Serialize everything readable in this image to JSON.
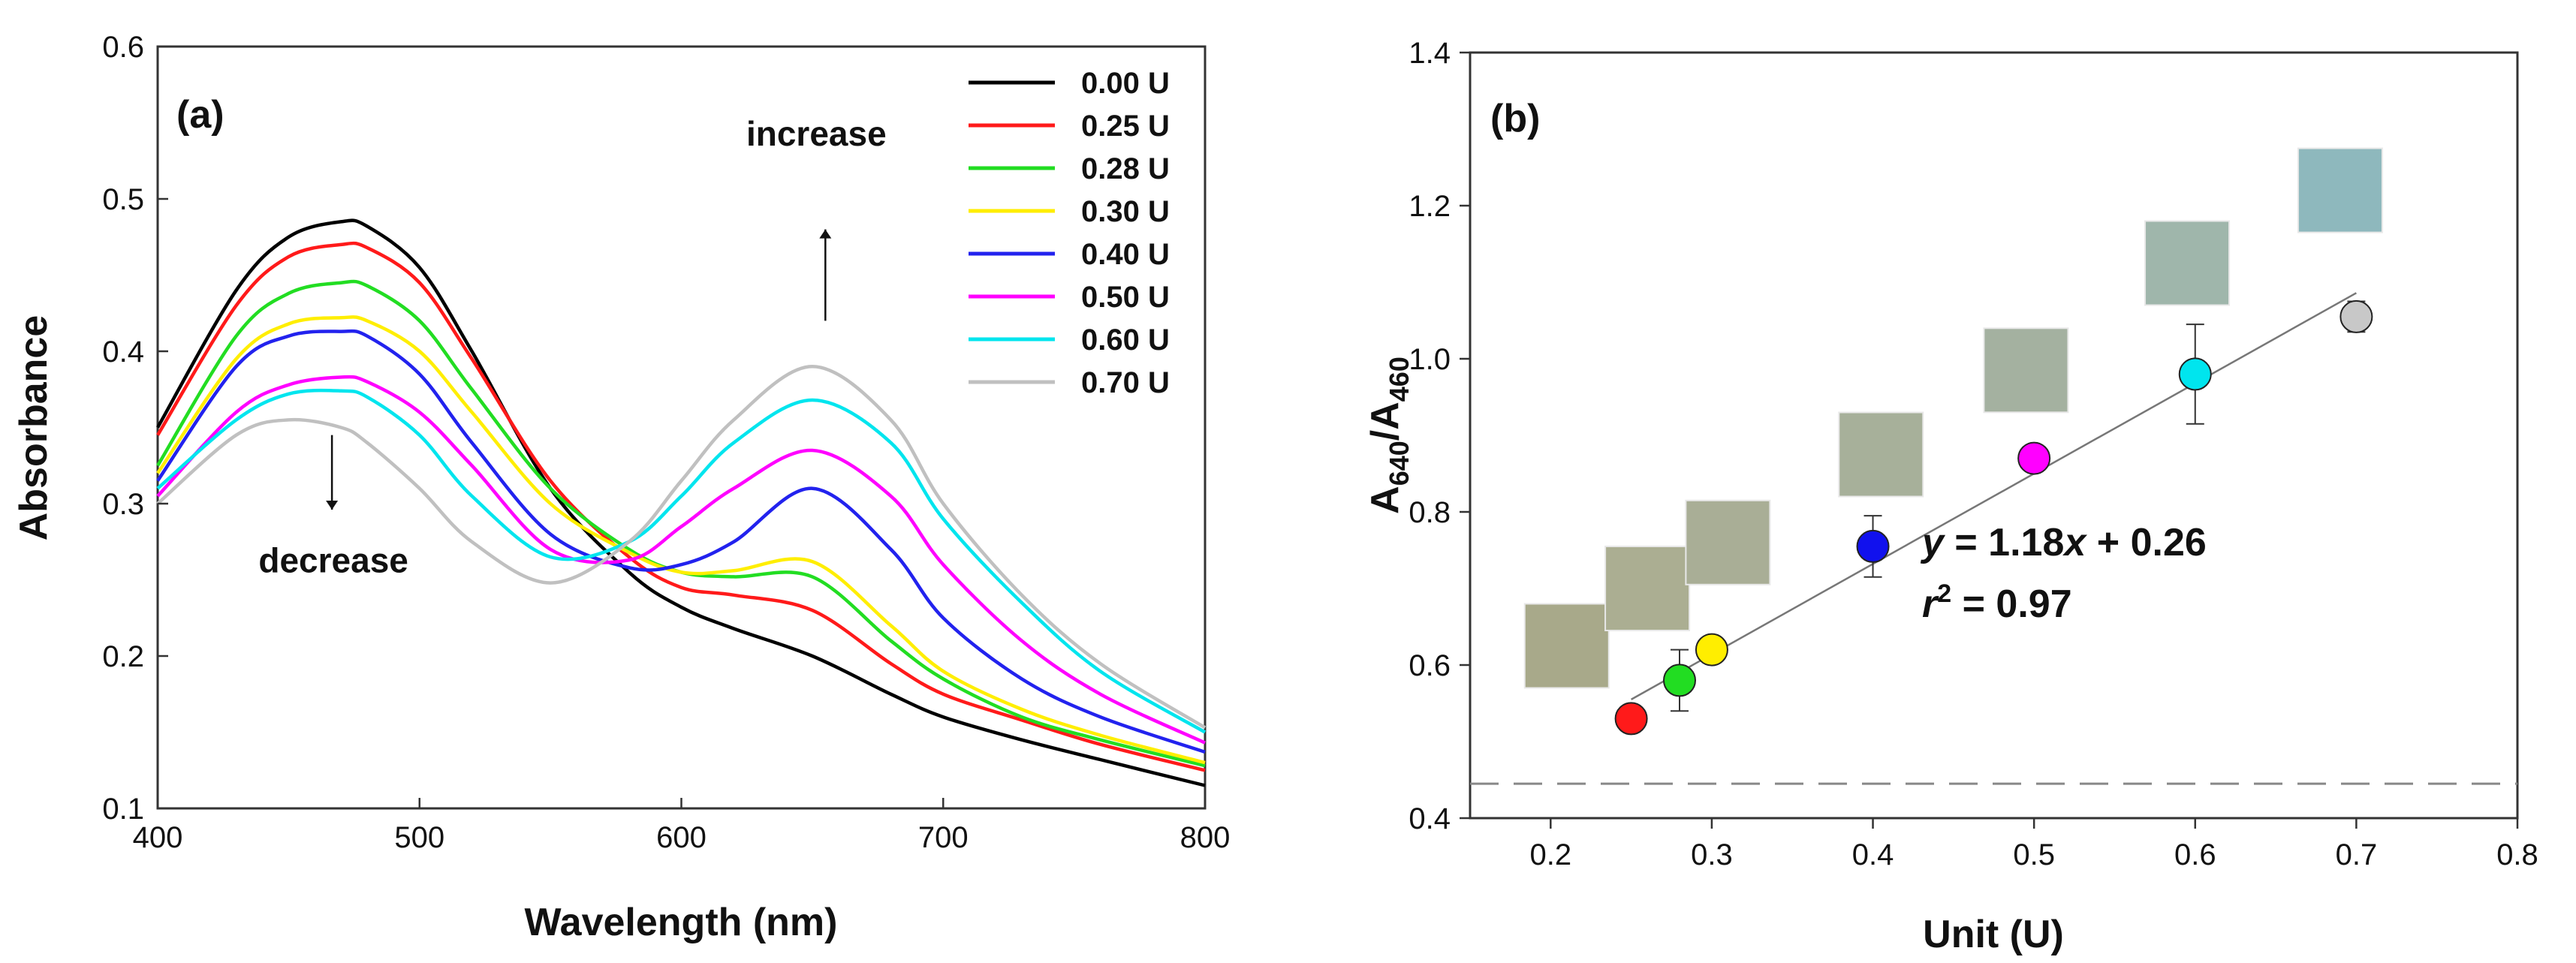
{
  "chart_data": [
    {
      "type": "line",
      "panel_label": "(a)",
      "xlabel": "Wavelength (nm)",
      "ylabel": "Absorbance",
      "xlim": [
        400,
        800
      ],
      "ylim": [
        0.1,
        0.6
      ],
      "xticks": [
        400,
        500,
        600,
        700,
        800
      ],
      "yticks": [
        0.1,
        0.2,
        0.3,
        0.4,
        0.5,
        0.6
      ],
      "legend_position": "top-right",
      "series": [
        {
          "name": "0.00 U",
          "color": "#000000",
          "x": [
            400,
            430,
            450,
            470,
            480,
            500,
            520,
            550,
            580,
            600,
            620,
            650,
            680,
            700,
            730,
            760,
            800
          ],
          "y": [
            0.35,
            0.44,
            0.475,
            0.485,
            0.482,
            0.455,
            0.4,
            0.31,
            0.255,
            0.232,
            0.218,
            0.2,
            0.175,
            0.16,
            0.145,
            0.132,
            0.115
          ]
        },
        {
          "name": "0.25 U",
          "color": "#ff1a1a",
          "x": [
            400,
            430,
            450,
            470,
            480,
            500,
            520,
            550,
            580,
            600,
            620,
            650,
            680,
            700,
            730,
            760,
            800
          ],
          "y": [
            0.345,
            0.43,
            0.462,
            0.47,
            0.468,
            0.445,
            0.395,
            0.315,
            0.265,
            0.245,
            0.24,
            0.23,
            0.195,
            0.175,
            0.158,
            0.142,
            0.125
          ]
        },
        {
          "name": "0.28 U",
          "color": "#22dd22",
          "x": [
            400,
            430,
            450,
            470,
            480,
            500,
            520,
            550,
            580,
            600,
            620,
            650,
            680,
            700,
            730,
            760,
            800
          ],
          "y": [
            0.325,
            0.41,
            0.438,
            0.445,
            0.443,
            0.42,
            0.375,
            0.31,
            0.27,
            0.255,
            0.252,
            0.252,
            0.21,
            0.185,
            0.16,
            0.145,
            0.128
          ]
        },
        {
          "name": "0.30 U",
          "color": "#ffee00",
          "x": [
            400,
            430,
            450,
            470,
            480,
            500,
            520,
            550,
            580,
            600,
            620,
            650,
            680,
            700,
            730,
            760,
            800
          ],
          "y": [
            0.32,
            0.395,
            0.418,
            0.422,
            0.42,
            0.4,
            0.36,
            0.3,
            0.268,
            0.255,
            0.256,
            0.262,
            0.22,
            0.19,
            0.165,
            0.148,
            0.13
          ]
        },
        {
          "name": "0.40 U",
          "color": "#2222ee",
          "x": [
            400,
            430,
            450,
            470,
            480,
            500,
            520,
            550,
            580,
            600,
            620,
            650,
            680,
            700,
            730,
            760,
            800
          ],
          "y": [
            0.315,
            0.39,
            0.41,
            0.413,
            0.41,
            0.385,
            0.34,
            0.28,
            0.258,
            0.26,
            0.275,
            0.31,
            0.27,
            0.225,
            0.185,
            0.16,
            0.137
          ]
        },
        {
          "name": "0.50 U",
          "color": "#ff00ff",
          "x": [
            400,
            430,
            450,
            470,
            480,
            500,
            520,
            550,
            580,
            600,
            620,
            650,
            680,
            700,
            730,
            760,
            800
          ],
          "y": [
            0.305,
            0.36,
            0.378,
            0.383,
            0.38,
            0.36,
            0.325,
            0.27,
            0.263,
            0.285,
            0.31,
            0.335,
            0.305,
            0.26,
            0.21,
            0.175,
            0.143
          ]
        },
        {
          "name": "0.60 U",
          "color": "#00e5ee",
          "x": [
            400,
            430,
            450,
            470,
            480,
            500,
            520,
            550,
            580,
            600,
            620,
            650,
            680,
            700,
            730,
            760,
            800
          ],
          "y": [
            0.31,
            0.355,
            0.372,
            0.374,
            0.37,
            0.345,
            0.305,
            0.265,
            0.275,
            0.305,
            0.34,
            0.368,
            0.34,
            0.29,
            0.235,
            0.19,
            0.15
          ]
        },
        {
          "name": "0.70 U",
          "color": "#c0c0c0",
          "x": [
            400,
            430,
            450,
            470,
            480,
            500,
            520,
            550,
            580,
            600,
            620,
            650,
            680,
            700,
            730,
            760,
            800
          ],
          "y": [
            0.3,
            0.345,
            0.355,
            0.35,
            0.34,
            0.31,
            0.275,
            0.248,
            0.275,
            0.315,
            0.355,
            0.39,
            0.355,
            0.3,
            0.24,
            0.195,
            0.153
          ]
        }
      ],
      "annotations": [
        {
          "text": "increase",
          "x": 655,
          "y": 0.42
        },
        {
          "text": "decrease",
          "x": 470,
          "y": 0.3
        }
      ]
    },
    {
      "type": "scatter",
      "panel_label": "(b)",
      "xlabel": "Unit (U)",
      "ylabel": "A640/A460",
      "ylabel_main": "A",
      "ylabel_sub1": "640",
      "ylabel_slash": "/A",
      "ylabel_sub2": "460",
      "xlim": [
        0.15,
        0.8
      ],
      "ylim": [
        0.4,
        1.4
      ],
      "xticks": [
        0.2,
        0.3,
        0.4,
        0.5,
        0.6,
        0.7,
        0.8
      ],
      "yticks": [
        0.4,
        0.6,
        0.8,
        1.0,
        1.2,
        1.4
      ],
      "points": [
        {
          "x": 0.25,
          "y": 0.53,
          "err": 0.0,
          "color": "#ff1a1a"
        },
        {
          "x": 0.28,
          "y": 0.58,
          "err": 0.04,
          "color": "#22dd22"
        },
        {
          "x": 0.3,
          "y": 0.62,
          "err": 0.0,
          "color": "#ffee00"
        },
        {
          "x": 0.4,
          "y": 0.755,
          "err": 0.04,
          "color": "#1111ee"
        },
        {
          "x": 0.5,
          "y": 0.87,
          "err": 0.0,
          "color": "#ff00ff"
        },
        {
          "x": 0.6,
          "y": 0.98,
          "err": 0.065,
          "color": "#00e5ee"
        },
        {
          "x": 0.7,
          "y": 1.055,
          "err": 0.02,
          "color": "#c8c8c8"
        }
      ],
      "fit": {
        "slope": 1.18,
        "intercept": 0.26,
        "x_from": 0.25,
        "x_to": 0.7
      },
      "equation_y": "y",
      "equation_rest": " = 1.18",
      "equation_x": "x",
      "equation_tail": " + 0.26",
      "r2_r": "r",
      "r2_exp": "2",
      "r2_tail": " = 0.97",
      "baseline": 0.445,
      "swatches": [
        {
          "x": 0.21,
          "y": 0.625,
          "color": "#a8a98a"
        },
        {
          "x": 0.26,
          "y": 0.7,
          "color": "#abae92"
        },
        {
          "x": 0.31,
          "y": 0.76,
          "color": "#a9ae96"
        },
        {
          "x": 0.405,
          "y": 0.875,
          "color": "#a7b09a"
        },
        {
          "x": 0.495,
          "y": 0.985,
          "color": "#a4b1a0"
        },
        {
          "x": 0.595,
          "y": 1.125,
          "color": "#9fb6ab"
        },
        {
          "x": 0.69,
          "y": 1.22,
          "color": "#8eb8bd"
        }
      ]
    }
  ]
}
